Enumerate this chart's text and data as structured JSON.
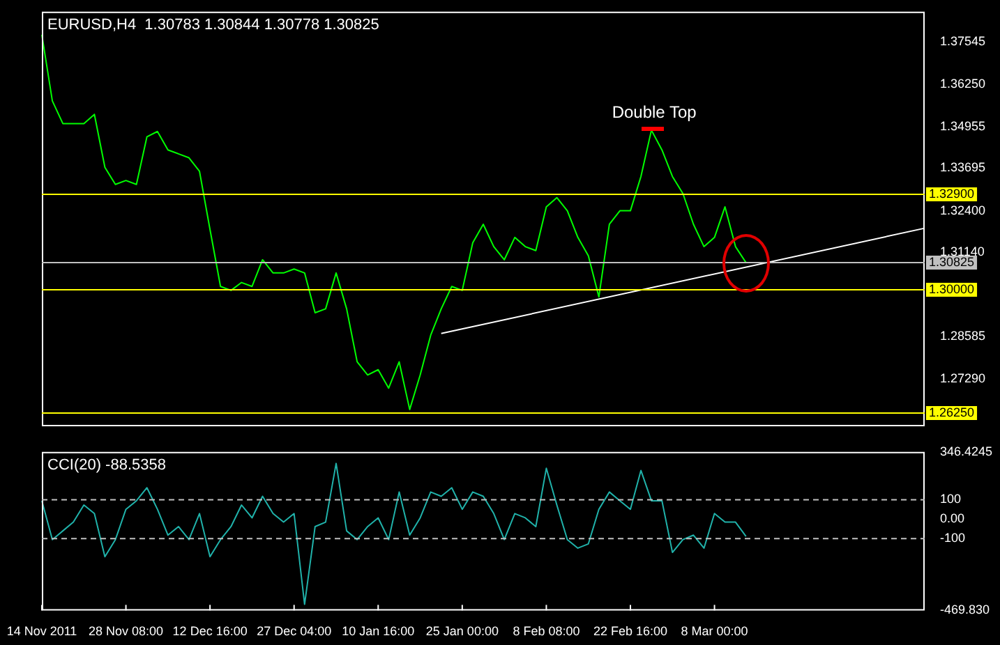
{
  "chart_data": [
    {
      "type": "line",
      "title": "EURUSD,H4  1.30783 1.30844 1.30778 1.30825",
      "categories": [
        null,
        null,
        null,
        null,
        null,
        null,
        null,
        null,
        null,
        null,
        null,
        null,
        null,
        null,
        null,
        null,
        null,
        null,
        null,
        null,
        null,
        null,
        null,
        null,
        null,
        null,
        null,
        null,
        null,
        null,
        null,
        null,
        null,
        null,
        null,
        null,
        null,
        null,
        null,
        null,
        null,
        null,
        null,
        null,
        null,
        null,
        null,
        null,
        null,
        null,
        null,
        null,
        null,
        null,
        null,
        null,
        null,
        null,
        null,
        null,
        null,
        null,
        null,
        null,
        null,
        null,
        null,
        null,
        null,
        null,
        null,
        null,
        null,
        null,
        null,
        null,
        null,
        null,
        null,
        null,
        null,
        null,
        null,
        null,
        null
      ],
      "series": [
        {
          "color": "#00ff00",
          "values": [
            1.3775,
            1.3574,
            1.3505,
            1.3505,
            1.3505,
            1.3533,
            1.3372,
            1.332,
            1.3332,
            1.332,
            1.3465,
            1.3481,
            1.3425,
            1.3413,
            1.3401,
            1.336,
            1.3183,
            1.301,
            1.2998,
            1.3022,
            1.301,
            1.3091,
            1.3051,
            1.3051,
            1.3063,
            1.3051,
            1.293,
            1.2942,
            1.3051,
            1.2942,
            1.2781,
            1.2741,
            1.2757,
            1.2701,
            1.2781,
            1.2636,
            1.2741,
            1.2862,
            1.2942,
            1.301,
            1.2998,
            1.3143,
            1.3199,
            1.3131,
            1.3091,
            1.3159,
            1.3131,
            1.3119,
            1.3252,
            1.328,
            1.324,
            1.3159,
            1.3103,
            1.2978,
            1.3199,
            1.324,
            1.324,
            1.3344,
            1.3485,
            1.3425,
            1.3344,
            1.3292,
            1.3199,
            1.3131,
            1.3159,
            1.3252,
            1.3131,
            1.30825,
            null,
            null,
            null,
            null,
            null,
            null,
            null,
            null,
            null,
            null,
            null,
            null,
            null,
            null,
            null,
            null,
            null
          ]
        },
        {
          "type": "line",
          "color": "#ffffff",
          "values": [
            null,
            null,
            null,
            null,
            null,
            null,
            null,
            null,
            null,
            null,
            null,
            null,
            null,
            null,
            null,
            null,
            null,
            null,
            null,
            null,
            null,
            null,
            null,
            null,
            null,
            null,
            null,
            null,
            null,
            null,
            null,
            null,
            null,
            null,
            null,
            null,
            null,
            null,
            1.2867,
            null,
            null,
            null,
            null,
            null,
            null,
            null,
            null,
            null,
            null,
            null,
            null,
            null,
            null,
            null,
            null,
            null,
            null,
            null,
            null,
            null,
            null,
            null,
            null,
            null,
            null,
            null,
            null,
            null,
            null,
            null,
            null,
            null,
            null,
            null,
            null,
            null,
            null,
            null,
            null,
            null,
            null,
            null,
            null,
            null,
            1.3187
          ]
        }
      ],
      "ylim": [
        1.2585,
        1.3845
      ],
      "yticks": [
        {
          "value": 1.37545,
          "label": "1.37545"
        },
        {
          "value": 1.3625,
          "label": "1.36250"
        },
        {
          "value": 1.34955,
          "label": "1.34955"
        },
        {
          "value": 1.33695,
          "label": "1.33695"
        },
        {
          "value": 1.324,
          "label": "1.32400"
        },
        {
          "value": 1.3114,
          "label": "1.31140"
        },
        {
          "value": 1.28585,
          "label": "1.28585"
        },
        {
          "value": 1.2729,
          "label": "1.27290"
        }
      ],
      "ref_lines": [
        {
          "axis": "y",
          "value": 1.329,
          "label": "1.32900",
          "color": "#ffff00"
        },
        {
          "axis": "y",
          "value": 1.3,
          "label": "1.30000",
          "color": "#ffff00"
        },
        {
          "axis": "y",
          "value": 1.2625,
          "label": "1.26250",
          "color": "#ffff00"
        },
        {
          "axis": "y",
          "value": 1.30825,
          "label": "1.30825",
          "color": "#c0c0c0"
        }
      ],
      "annotations": [
        "Double Top"
      ],
      "tick_labels": "y",
      "grid": false,
      "legend": false,
      "marker": "none"
    },
    {
      "type": "line",
      "title": "CCI(20) -88.5358",
      "categories": [
        "14 Nov 2011",
        null,
        null,
        null,
        null,
        null,
        null,
        null,
        "28 Nov 08:00",
        null,
        null,
        null,
        null,
        null,
        null,
        null,
        "12 Dec 16:00",
        null,
        null,
        null,
        null,
        null,
        null,
        null,
        "27 Dec 04:00",
        null,
        null,
        null,
        null,
        null,
        null,
        null,
        "10 Jan 16:00",
        null,
        null,
        null,
        null,
        null,
        null,
        null,
        "25 Jan 00:00",
        null,
        null,
        null,
        null,
        null,
        null,
        null,
        "8 Feb 08:00",
        null,
        null,
        null,
        null,
        null,
        null,
        null,
        "22 Feb 16:00",
        null,
        null,
        null,
        null,
        null,
        null,
        null,
        "8 Mar 00:00",
        null,
        null,
        null,
        null,
        null,
        null,
        null,
        null,
        null,
        null,
        null,
        null,
        null,
        null,
        null,
        null,
        null,
        null,
        null,
        null
      ],
      "series": [
        {
          "color": "#20b2aa",
          "values": [
            95,
            -105,
            -60,
            -15,
            73,
            29,
            -193,
            -105,
            51,
            95,
            162,
            51,
            -82,
            -38,
            -105,
            29,
            -193,
            -105,
            -38,
            73,
            7,
            118,
            29,
            -15,
            29,
            -438,
            -38,
            -15,
            287,
            -60,
            -105,
            -38,
            7,
            -105,
            140,
            -82,
            7,
            140,
            118,
            162,
            51,
            140,
            118,
            29,
            -105,
            29,
            7,
            -38,
            262,
            73,
            -105,
            -149,
            -127,
            51,
            140,
            95,
            51,
            251,
            95,
            95,
            -171,
            -105,
            -82,
            -149,
            29,
            -15,
            -15,
            -88.5358,
            null,
            null,
            null,
            null,
            null,
            null,
            null,
            null,
            null,
            null,
            null,
            null,
            null,
            null,
            null,
            null,
            null
          ]
        }
      ],
      "ylim": [
        -469.83,
        346.4245
      ],
      "yticks": [
        {
          "value": 346.4245,
          "label": "346.4245"
        },
        100,
        {
          "value": 0,
          "label": "0.00"
        },
        -100,
        {
          "value": -469.83,
          "label": "-469.830"
        }
      ],
      "ref_lines": [
        {
          "axis": "y",
          "value": 100,
          "color": "#c0c0c0",
          "line_style": "dashed"
        },
        {
          "axis": "y",
          "value": -100,
          "color": "#c0c0c0",
          "line_style": "dashed"
        }
      ],
      "grid": false,
      "legend": false,
      "marker": "none"
    }
  ]
}
